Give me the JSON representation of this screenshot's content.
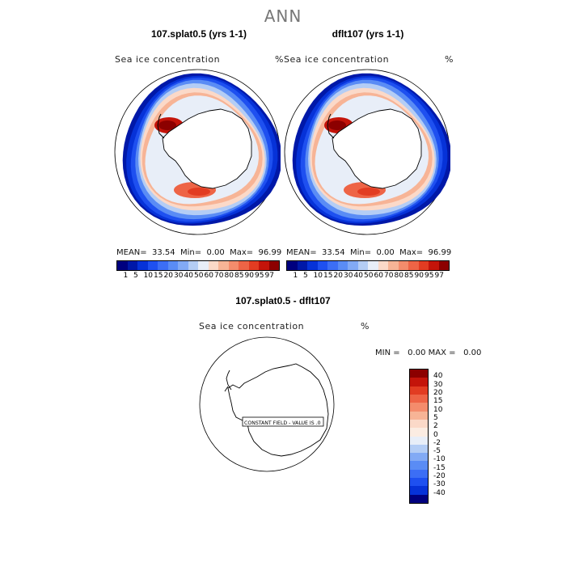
{
  "main_title": "ANN",
  "panels": [
    {
      "title": "107.splat0.5 (yrs 1-1)",
      "variable": "Sea ice concentration",
      "units": "%",
      "mean_label": "MEAN=",
      "mean": "33.54",
      "min_label": "Min=",
      "min": "0.00",
      "max_label": "Max=",
      "max": "96.99"
    },
    {
      "title": "dflt107 (yrs 1-1)",
      "variable": "Sea ice concentration",
      "units": "%",
      "mean_label": "MEAN=",
      "mean": "33.54",
      "min_label": "Min=",
      "min": "0.00",
      "max_label": "Max=",
      "max": "96.99"
    }
  ],
  "colorbar": {
    "levels": [
      "1",
      "5",
      "10",
      "15",
      "20",
      "30",
      "40",
      "50",
      "60",
      "70",
      "80",
      "85",
      "90",
      "95",
      "97"
    ],
    "colors": [
      "#00007f",
      "#0018a8",
      "#0632d8",
      "#1e50f0",
      "#3c6ef5",
      "#5a8cf5",
      "#82aaf5",
      "#b4cdf5",
      "#e8eef8",
      "#fbd9c8",
      "#f7b496",
      "#f48c6c",
      "#ee6446",
      "#e23c22",
      "#c4140a",
      "#8c0000"
    ]
  },
  "difference": {
    "title": "107.splat0.5 - dflt107",
    "variable": "Sea ice concentration",
    "units": "%",
    "min_label": "MIN =",
    "min": "0.00",
    "max_label": "MAX =",
    "max": "0.00",
    "constant_note": "CONSTANT FIELD - VALUE IS .0",
    "levels": [
      "40",
      "30",
      "20",
      "15",
      "10",
      "5",
      "2",
      "0",
      "-2",
      "-5",
      "-10",
      "-15",
      "-20",
      "-30",
      "-40"
    ],
    "colors": [
      "#8c0000",
      "#c4140a",
      "#e23c22",
      "#ee6446",
      "#f48c6c",
      "#f7b496",
      "#fbd9c8",
      "#fbece2",
      "#e8eef8",
      "#b4cdf5",
      "#82aaf5",
      "#5a8cf5",
      "#3c6ef5",
      "#1e50f0",
      "#0632d8",
      "#00007f"
    ]
  }
}
